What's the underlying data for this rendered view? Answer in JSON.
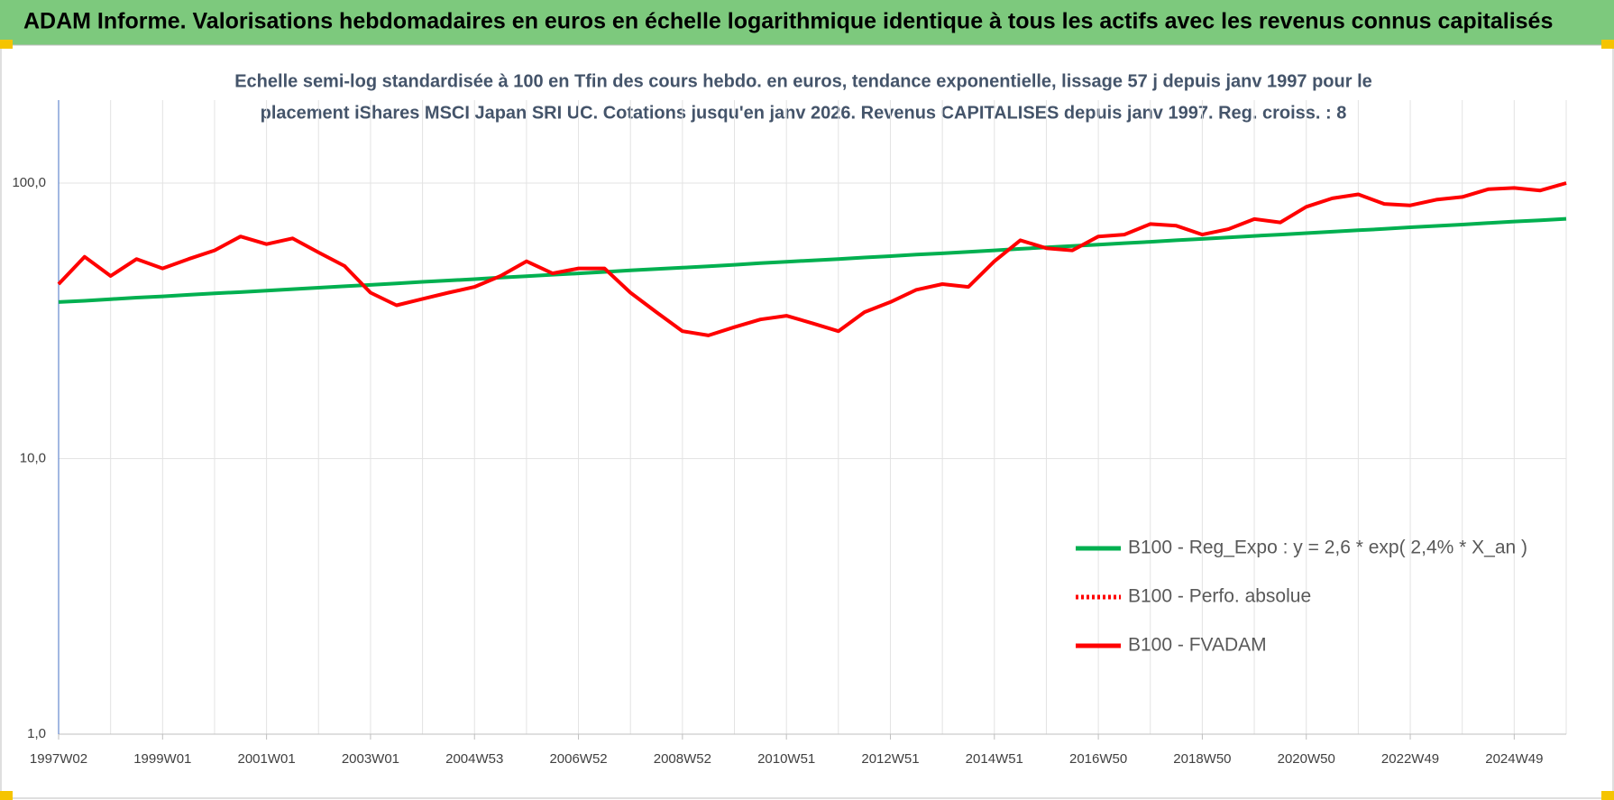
{
  "chart_data": {
    "type": "line",
    "header": "ADAM Informe. Valorisations hebdomadaires en euros en échelle logarithmique identique à tous les actifs avec les revenus connus capitalisés",
    "subtitle_lines": [
      "Echelle semi-log standardisée à 100 en Tfin des cours hebdo. en euros, tendance exponentielle, lissage 57 j depuis janv 1997 pour le",
      "placement iShares MSCI Japan SRI UC. Cotations jusqu'en janv 2026. Revenus CAPITALISES depuis janv 1997. Reg. croiss. : 8"
    ],
    "log_scale": true,
    "grid": true,
    "legend_position": "right",
    "ylim": [
      1,
      200
    ],
    "yticks": [
      {
        "value": 1,
        "label": "1,0"
      },
      {
        "value": 10,
        "label": "10,0"
      },
      {
        "value": 100,
        "label": "100,0"
      }
    ],
    "categories": [
      "1997W02",
      null,
      null,
      null,
      "1999W01",
      null,
      null,
      null,
      "2001W01",
      null,
      null,
      null,
      "2003W01",
      null,
      null,
      null,
      "2004W53",
      null,
      null,
      null,
      "2006W52",
      null,
      null,
      null,
      "2008W52",
      null,
      null,
      null,
      "2010W51",
      null,
      null,
      null,
      "2012W51",
      null,
      null,
      null,
      "2014W51",
      null,
      null,
      null,
      "2016W50",
      null,
      null,
      null,
      "2018W50",
      null,
      null,
      null,
      "2020W50",
      null,
      null,
      null,
      "2022W49",
      null,
      null,
      null,
      "2024W49",
      null,
      null
    ],
    "series": [
      {
        "name": "B100 - Reg_Expo : y = 2,6 * exp( 2,4% *  X_an )",
        "color": "#00b050",
        "style": "solid",
        "values": [
          37.0,
          37.4,
          37.9,
          38.4,
          38.8,
          39.3,
          39.8,
          40.2,
          40.7,
          41.2,
          41.7,
          42.2,
          42.7,
          43.2,
          43.8,
          44.3,
          44.8,
          45.4,
          45.9,
          46.5,
          47.0,
          47.6,
          48.2,
          48.8,
          49.3,
          49.9,
          50.5,
          51.2,
          51.8,
          52.4,
          53.0,
          53.7,
          54.3,
          55.0,
          55.6,
          56.3,
          57.0,
          57.7,
          58.4,
          59.1,
          59.8,
          60.5,
          61.2,
          62.0,
          62.7,
          63.5,
          64.3,
          65.0,
          65.8,
          66.6,
          67.4,
          68.2,
          69.1,
          69.9,
          70.7,
          71.6,
          72.5,
          73.3,
          74.2
        ]
      },
      {
        "name": "B100 - Perfo. absolue",
        "color": "#ff0000",
        "style": "dotted",
        "values": [
          43,
          54,
          46,
          53,
          49,
          53,
          57,
          64,
          60,
          63,
          56,
          50,
          40,
          36,
          38,
          40,
          42,
          46,
          52,
          47,
          49,
          49,
          40,
          34,
          29,
          28,
          30,
          32,
          33,
          31,
          29,
          34,
          37,
          41,
          43,
          42,
          52,
          62,
          58,
          57,
          64,
          65,
          71,
          70,
          65,
          68,
          74,
          72,
          82,
          88,
          91,
          84,
          83,
          87,
          89,
          95,
          96,
          94,
          100
        ]
      },
      {
        "name": "B100 - FVADAM",
        "color": "#ff0000",
        "style": "solid",
        "values": [
          43,
          54,
          46,
          53,
          49,
          53,
          57,
          64,
          60,
          63,
          56,
          50,
          40,
          36,
          38,
          40,
          42,
          46,
          52,
          47,
          49,
          49,
          40,
          34,
          29,
          28,
          30,
          32,
          33,
          31,
          29,
          34,
          37,
          41,
          43,
          42,
          52,
          62,
          58,
          57,
          64,
          65,
          71,
          70,
          65,
          68,
          74,
          72,
          82,
          88,
          91,
          84,
          83,
          87,
          89,
          95,
          96,
          94,
          100
        ]
      }
    ]
  }
}
